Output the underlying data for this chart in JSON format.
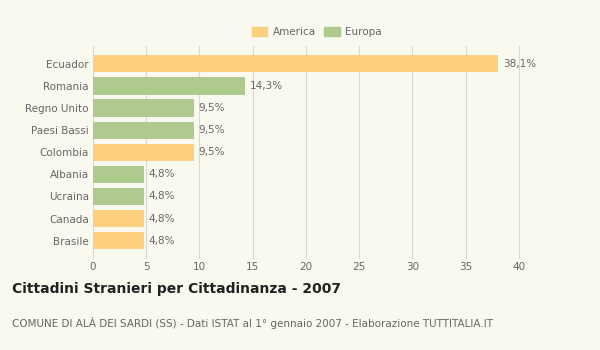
{
  "categories": [
    "Ecuador",
    "Romania",
    "Regno Unito",
    "Paesi Bassi",
    "Colombia",
    "Albania",
    "Ucraina",
    "Canada",
    "Brasile"
  ],
  "values": [
    38.1,
    14.3,
    9.5,
    9.5,
    9.5,
    4.8,
    4.8,
    4.8,
    4.8
  ],
  "labels": [
    "38,1%",
    "14,3%",
    "9,5%",
    "9,5%",
    "9,5%",
    "4,8%",
    "4,8%",
    "4,8%",
    "4,8%"
  ],
  "colors": [
    "#FDCF7E",
    "#AECA8E",
    "#AECA8E",
    "#AECA8E",
    "#FDCF7E",
    "#AECA8E",
    "#AECA8E",
    "#FDCF7E",
    "#FDCF7E"
  ],
  "legend_labels": [
    "America",
    "Europa"
  ],
  "legend_colors": [
    "#FDCF7E",
    "#AECA8E"
  ],
  "xlim": [
    0,
    42
  ],
  "xticks": [
    0,
    5,
    10,
    15,
    20,
    25,
    30,
    35,
    40
  ],
  "title": "Cittadini Stranieri per Cittadinanza - 2007",
  "subtitle": "COMUNE DI ALÀ DEI SARDI (SS) - Dati ISTAT al 1° gennaio 2007 - Elaborazione TUTTITALIA.IT",
  "bg_color": "#f9f9f0",
  "bar_height": 0.78,
  "title_fontsize": 10,
  "subtitle_fontsize": 7.5,
  "label_fontsize": 7.5,
  "tick_fontsize": 7.5,
  "grid_color": "#d8d8cc"
}
